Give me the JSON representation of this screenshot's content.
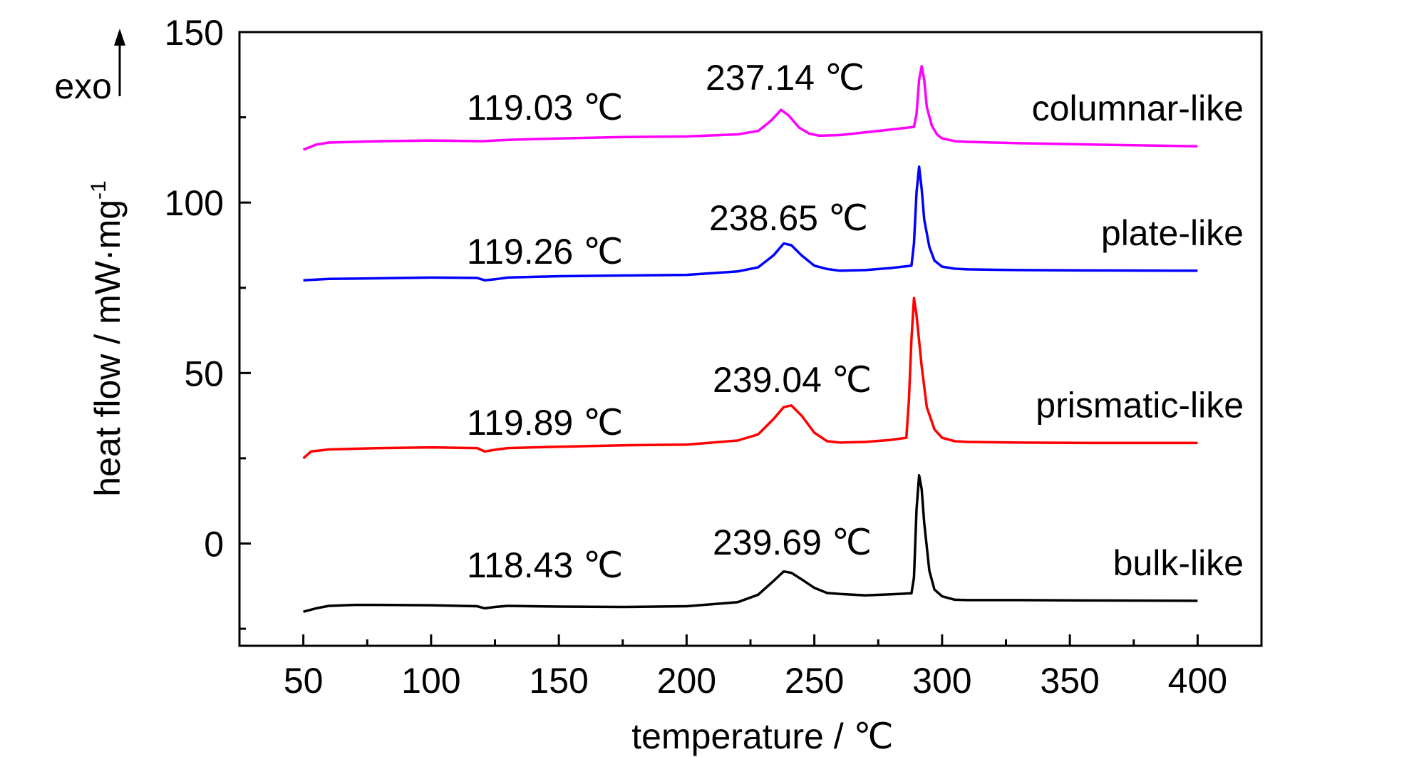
{
  "chart_data": {
    "type": "line",
    "title": "",
    "xlabel": "temperature / ℃",
    "ylabel": "heat flow / mW·mg",
    "ylabel_superscript": "-1",
    "exo_label": "exo",
    "xlim": [
      25,
      425
    ],
    "ylim": [
      -30,
      150
    ],
    "xticks": [
      50,
      100,
      150,
      200,
      250,
      300,
      350,
      400
    ],
    "yticks": [
      0,
      50,
      100,
      150
    ],
    "grid": false,
    "series": [
      {
        "name": "columnar-like",
        "color": "#ff00ff",
        "x": [
          50,
          55,
          60,
          80,
          100,
          120,
          125,
          130,
          150,
          175,
          200,
          220,
          228,
          233,
          237,
          240,
          244,
          248,
          252,
          260,
          270,
          280,
          289,
          290,
          291,
          292,
          293,
          294,
          296,
          298,
          300,
          305,
          310,
          330,
          360,
          400
        ],
        "y": [
          115.5,
          117.0,
          117.6,
          118.0,
          118.2,
          118.0,
          118.2,
          118.4,
          118.8,
          119.2,
          119.4,
          120.0,
          121.0,
          124.0,
          127.2,
          125.5,
          122.0,
          120.2,
          119.6,
          119.8,
          120.6,
          121.4,
          122.2,
          126.0,
          136.0,
          140.0,
          136.0,
          128.0,
          122.5,
          120.0,
          118.8,
          118.0,
          117.8,
          117.4,
          117.0,
          116.5
        ]
      },
      {
        "name": "plate-like",
        "color": "#0000ff",
        "x": [
          50,
          60,
          80,
          100,
          118,
          121,
          125,
          130,
          150,
          175,
          200,
          220,
          228,
          234,
          238,
          241,
          245,
          250,
          255,
          260,
          270,
          280,
          288,
          289,
          290,
          291,
          292,
          293,
          295,
          297,
          300,
          305,
          310,
          330,
          360,
          400
        ],
        "y": [
          77.2,
          77.6,
          77.8,
          78.0,
          77.9,
          77.2,
          77.5,
          78.0,
          78.4,
          78.6,
          78.8,
          79.8,
          81.0,
          84.5,
          88.0,
          87.5,
          84.5,
          81.5,
          80.5,
          80.0,
          80.2,
          80.8,
          81.5,
          88.0,
          103.0,
          110.5,
          104.0,
          95.0,
          87.0,
          83.0,
          81.2,
          80.6,
          80.4,
          80.2,
          80.1,
          80.0
        ]
      },
      {
        "name": "prismatic-like",
        "color": "#ff0000",
        "x": [
          50,
          53,
          60,
          80,
          100,
          118,
          121,
          125,
          130,
          150,
          175,
          200,
          220,
          228,
          234,
          238,
          241,
          245,
          250,
          255,
          260,
          270,
          280,
          286,
          287,
          288,
          289,
          290,
          292,
          294,
          297,
          300,
          305,
          310,
          330,
          360,
          400
        ],
        "y": [
          25.0,
          27.0,
          27.6,
          28.0,
          28.2,
          28.0,
          27.0,
          27.5,
          28.0,
          28.4,
          28.8,
          29.0,
          30.2,
          32.0,
          36.5,
          40.0,
          40.5,
          37.5,
          32.5,
          30.0,
          29.6,
          29.8,
          30.4,
          31.0,
          42.0,
          60.0,
          72.0,
          67.0,
          52.0,
          40.0,
          33.5,
          31.0,
          30.0,
          29.8,
          29.6,
          29.5,
          29.5
        ]
      },
      {
        "name": "bulk-like",
        "color": "#000000",
        "x": [
          50,
          55,
          60,
          70,
          80,
          100,
          118,
          121,
          125,
          130,
          150,
          175,
          200,
          220,
          228,
          234,
          238,
          241,
          245,
          250,
          255,
          260,
          270,
          280,
          288,
          289,
          290,
          291,
          292,
          293,
          295,
          297,
          300,
          305,
          310,
          330,
          360,
          400
        ],
        "y": [
          -20.0,
          -19.0,
          -18.3,
          -18.0,
          -18.0,
          -18.1,
          -18.4,
          -19.0,
          -18.6,
          -18.3,
          -18.5,
          -18.6,
          -18.4,
          -17.2,
          -15.0,
          -11.0,
          -8.2,
          -8.6,
          -10.5,
          -13.0,
          -14.5,
          -14.8,
          -15.2,
          -14.9,
          -14.6,
          -10.0,
          10.0,
          20.0,
          16.0,
          6.0,
          -8.0,
          -13.5,
          -15.5,
          -16.5,
          -16.6,
          -16.6,
          -16.7,
          -16.8
        ]
      }
    ],
    "annotations": [
      {
        "series": "columnar-like",
        "low_text": "119.03 ℃",
        "high_text": "237.14 ℃"
      },
      {
        "series": "plate-like",
        "low_text": "119.26 ℃",
        "high_text": "238.65 ℃"
      },
      {
        "series": "prismatic-like",
        "low_text": "119.89 ℃",
        "high_text": "239.04 ℃"
      },
      {
        "series": "bulk-like",
        "low_text": "118.43 ℃",
        "high_text": "239.69 ℃"
      }
    ]
  }
}
